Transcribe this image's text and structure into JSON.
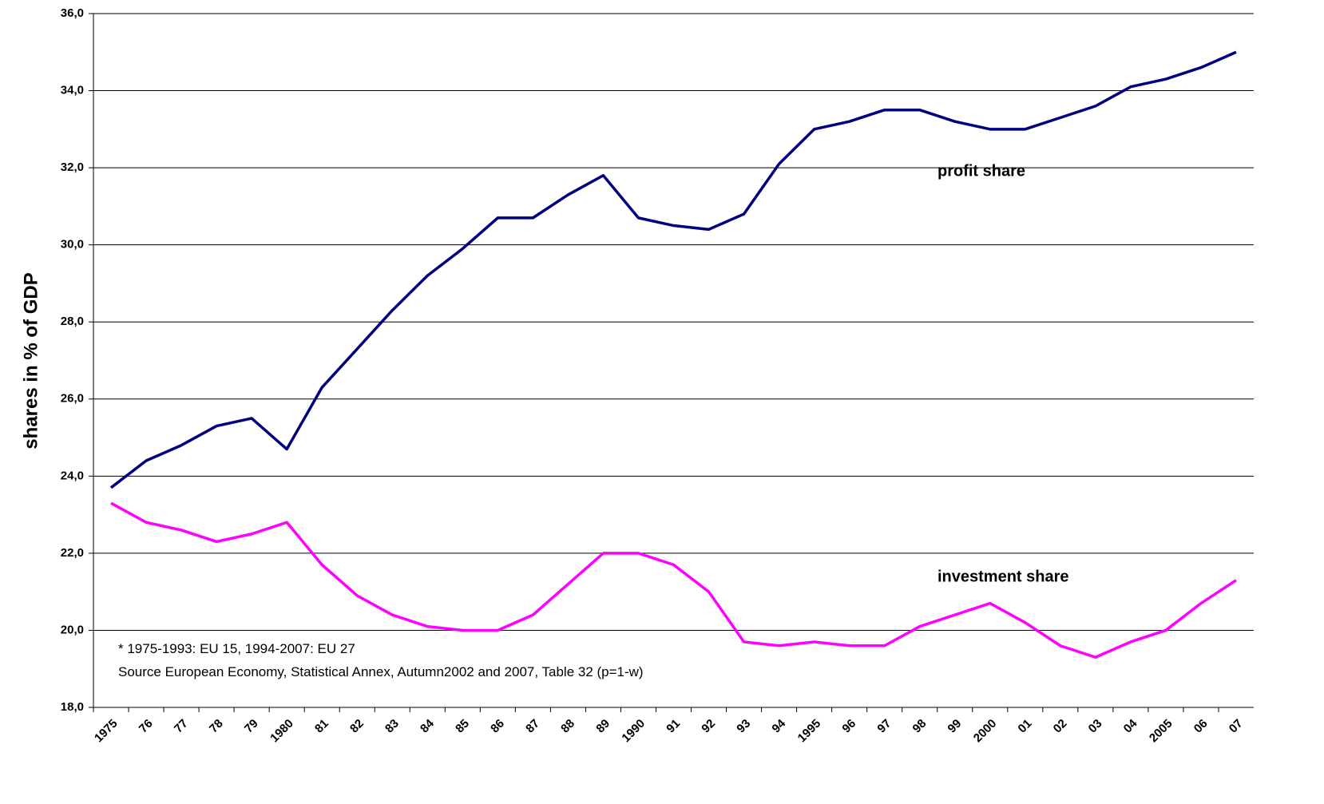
{
  "chart_data": {
    "type": "line",
    "ylabel": "shares in % of GDP",
    "categories": [
      "1975",
      "76",
      "77",
      "78",
      "79",
      "1980",
      "81",
      "82",
      "83",
      "84",
      "85",
      "86",
      "87",
      "88",
      "89",
      "1990",
      "91",
      "92",
      "93",
      "94",
      "1995",
      "96",
      "97",
      "98",
      "99",
      "2000",
      "01",
      "02",
      "03",
      "04",
      "2005",
      "06",
      "07"
    ],
    "series": [
      {
        "name": "profit share",
        "color": "#000080",
        "values": [
          23.7,
          24.4,
          24.8,
          25.3,
          25.5,
          24.7,
          26.3,
          27.3,
          28.3,
          29.2,
          29.9,
          30.7,
          30.7,
          31.3,
          31.8,
          30.7,
          30.5,
          30.4,
          30.8,
          32.1,
          33.0,
          33.2,
          33.5,
          33.5,
          33.2,
          33.0,
          33.0,
          33.3,
          33.6,
          34.1,
          34.3,
          34.6,
          35.0
        ]
      },
      {
        "name": "investment share",
        "color": "#ff00ff",
        "values": [
          23.3,
          22.8,
          22.6,
          22.3,
          22.5,
          22.8,
          21.7,
          20.9,
          20.4,
          20.1,
          20.0,
          20.0,
          20.4,
          21.2,
          22.0,
          22.0,
          21.7,
          21.0,
          19.7,
          19.6,
          19.7,
          19.6,
          19.6,
          20.1,
          20.4,
          20.7,
          20.2,
          19.6,
          19.3,
          19.7,
          20.0,
          20.7,
          21.3
        ]
      }
    ],
    "notes": [
      "* 1975-1993: EU 15, 1994-2007: EU 27",
      "Source European Economy, Statistical Annex, Autumn2002 and 2007, Table 32 (p=1-w)"
    ],
    "ylim": [
      18,
      36
    ],
    "yticks": [
      {
        "value": 18,
        "label": "18,0"
      },
      {
        "value": 20,
        "label": "20,0"
      },
      {
        "value": 22,
        "label": "22,0"
      },
      {
        "value": 24,
        "label": "24,0"
      },
      {
        "value": 26,
        "label": "26,0"
      },
      {
        "value": 28,
        "label": "28,0"
      },
      {
        "value": 30,
        "label": "30,0"
      },
      {
        "value": 32,
        "label": "32,0"
      },
      {
        "value": 34,
        "label": "34,0"
      },
      {
        "value": 36,
        "label": "36,0"
      }
    ],
    "grid": true
  }
}
